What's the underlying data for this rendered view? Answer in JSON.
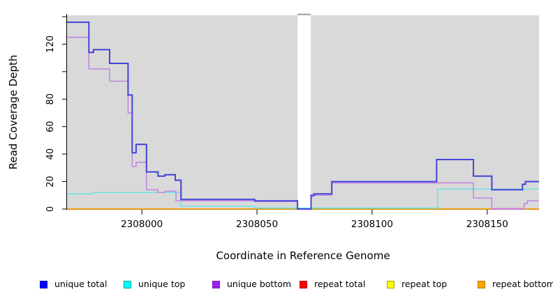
{
  "chart_data": {
    "type": "line",
    "subtype": "step-coverage-plot",
    "title": "",
    "xlabel": "Coordinate in Reference Genome",
    "ylabel": "Read Coverage Depth",
    "xlim": [
      2307967.5,
      2308172.5
    ],
    "ylim": [
      0,
      141
    ],
    "plot_background": "#d9d9d9",
    "page_background": "#ffffff",
    "axis_color": "#000000",
    "grid": "off",
    "legend_position": "bottom",
    "x_axis": {
      "values": [
        2308000,
        2308050,
        2308100,
        2308150
      ],
      "labels": [
        "2308000",
        "2308050",
        "2308100",
        "2308150"
      ]
    },
    "y_axis": {
      "values": [
        0,
        20,
        40,
        60,
        80,
        100,
        120,
        140
      ],
      "labels": [
        "0",
        "20",
        "40",
        "60",
        "80",
        "",
        "120",
        ""
      ]
    },
    "gap_region": {
      "x_start": 2308067.6,
      "x_end": 2308073.4,
      "fill": "#ffffff",
      "cap_color": "#aeaeae"
    },
    "x_end": 2308172.5,
    "series": [
      {
        "name": "repeat total",
        "color": "#cc2222",
        "width": 1.2,
        "points": [
          [
            2307967.5,
            0
          ]
        ]
      },
      {
        "name": "repeat top",
        "color": "#e8e800",
        "width": 1.2,
        "points": [
          [
            2307967.5,
            0
          ]
        ]
      },
      {
        "name": "repeat bottom",
        "color": "#ffa200",
        "width": 1.6,
        "points": [
          [
            2307967.5,
            0
          ]
        ]
      },
      {
        "name": "unique top",
        "color": "#63e3e3",
        "width": 1.4,
        "points": [
          [
            2307967.5,
            11
          ],
          [
            2307979,
            12
          ],
          [
            2308017,
            2
          ],
          [
            2308049,
            0.7
          ],
          [
            2308128.5,
            14.5
          ]
        ]
      },
      {
        "name": "unique bottom",
        "color": "#bf7fe6",
        "width": 1.4,
        "points": [
          [
            2307967.5,
            125
          ],
          [
            2307977,
            102
          ],
          [
            2307986,
            93
          ],
          [
            2307994,
            70
          ],
          [
            2307995.8,
            31
          ],
          [
            2307997.5,
            34
          ],
          [
            2308002,
            14
          ],
          [
            2308007,
            12
          ],
          [
            2308010,
            13
          ],
          [
            2308014.8,
            6
          ],
          [
            2308049,
            5.5
          ],
          [
            2308067.6,
            0
          ],
          [
            2308073.5,
            9
          ],
          [
            2308074.8,
            10
          ],
          [
            2308082.5,
            19
          ],
          [
            2308144,
            8
          ],
          [
            2308152,
            0
          ],
          [
            2308166,
            4
          ],
          [
            2308167.5,
            6
          ]
        ]
      },
      {
        "name": "unique total",
        "color": "#4343d7",
        "width": 2,
        "points": [
          [
            2307967.5,
            136
          ],
          [
            2307977,
            114
          ],
          [
            2307979,
            116
          ],
          [
            2307986,
            106
          ],
          [
            2307994,
            83
          ],
          [
            2307995.8,
            41
          ],
          [
            2307997.5,
            47
          ],
          [
            2308002,
            27
          ],
          [
            2308007,
            24
          ],
          [
            2308010,
            25
          ],
          [
            2308014.5,
            21
          ],
          [
            2308017,
            7
          ],
          [
            2308049,
            6
          ],
          [
            2308067.6,
            0
          ],
          [
            2308073.5,
            10
          ],
          [
            2308074.8,
            11
          ],
          [
            2308082.5,
            20
          ],
          [
            2308128,
            36
          ],
          [
            2308144,
            24
          ],
          [
            2308152,
            14
          ],
          [
            2308165.3,
            18
          ],
          [
            2308166.6,
            20
          ]
        ]
      }
    ],
    "overlap_segments": [
      {
        "note": "unique top overlapping repeat bottom near zero",
        "color": "#90cd90",
        "y": 0.6,
        "x_start": 2308049,
        "x_end": 2308128.5
      },
      {
        "note": "unique bottom overlapping repeat bottom near zero",
        "color": "#e884d8",
        "y": 0.4,
        "x_start": 2308152,
        "x_end": 2308166
      }
    ]
  },
  "legend": {
    "items": [
      {
        "label": "unique total",
        "fill": "#0000ff",
        "border": "#0000b3"
      },
      {
        "label": "unique top",
        "fill": "#00ffff",
        "border": "#00a3a3"
      },
      {
        "label": "unique bottom",
        "fill": "#a020f0",
        "border": "#7a1ab8"
      },
      {
        "label": "repeat total",
        "fill": "#ff0000",
        "border": "#b30000"
      },
      {
        "label": "repeat top",
        "fill": "#ffff00",
        "border": "#a3a300"
      },
      {
        "label": "repeat bottom",
        "fill": "#ffa500",
        "border": "#b37400"
      }
    ]
  }
}
